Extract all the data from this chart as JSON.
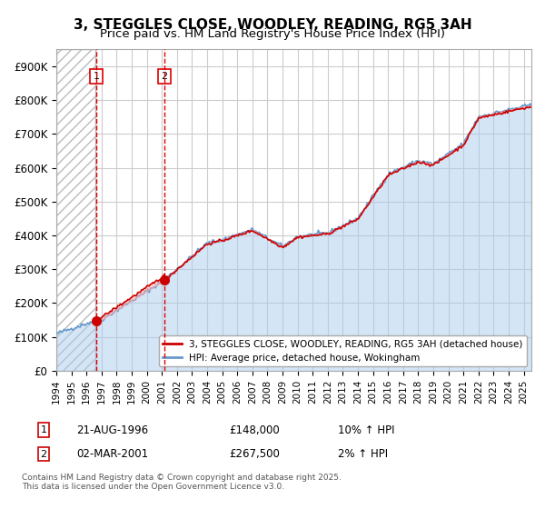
{
  "title": "3, STEGGLES CLOSE, WOODLEY, READING, RG5 3AH",
  "subtitle": "Price paid vs. HM Land Registry's House Price Index (HPI)",
  "ylabel": "",
  "xlabel": "",
  "ylim": [
    0,
    950000
  ],
  "yticks": [
    0,
    100000,
    200000,
    300000,
    400000,
    500000,
    600000,
    700000,
    800000,
    900000
  ],
  "ytick_labels": [
    "£0",
    "£100K",
    "£200K",
    "£300K",
    "£400K",
    "£500K",
    "£600K",
    "£700K",
    "£800K",
    "£900K"
  ],
  "xlim_start": 1994.0,
  "xlim_end": 2025.5,
  "xticks": [
    1994,
    1995,
    1996,
    1997,
    1998,
    1999,
    2000,
    2001,
    2002,
    2003,
    2004,
    2005,
    2006,
    2007,
    2008,
    2009,
    2010,
    2011,
    2012,
    2013,
    2014,
    2015,
    2016,
    2017,
    2018,
    2019,
    2020,
    2021,
    2022,
    2023,
    2024,
    2025
  ],
  "hatch_region_start": 1994.0,
  "hatch_region_end": 1996.6,
  "sale1_x": 1996.64,
  "sale1_y": 148000,
  "sale1_label": "1",
  "sale1_vline_x": 1996.64,
  "sale2_x": 2001.16,
  "sale2_y": 267500,
  "sale2_label": "2",
  "sale2_vline_x": 2001.16,
  "red_line_color": "#cc0000",
  "blue_line_color": "#6699cc",
  "blue_fill_color": "#aaccee",
  "hatch_color": "#cccccc",
  "grid_color": "#cccccc",
  "vline_color": "#dd0000",
  "legend_label_red": "3, STEGGLES CLOSE, WOODLEY, READING, RG5 3AH (detached house)",
  "legend_label_blue": "HPI: Average price, detached house, Wokingham",
  "annotation1_num": "1",
  "annotation1_date": "21-AUG-1996",
  "annotation1_price": "£148,000",
  "annotation1_hpi": "10% ↑ HPI",
  "annotation2_num": "2",
  "annotation2_date": "02-MAR-2001",
  "annotation2_price": "£267,500",
  "annotation2_hpi": "2% ↑ HPI",
  "footer": "Contains HM Land Registry data © Crown copyright and database right 2025.\nThis data is licensed under the Open Government Licence v3.0.",
  "title_fontsize": 11,
  "subtitle_fontsize": 9.5,
  "background_color": "#ffffff"
}
